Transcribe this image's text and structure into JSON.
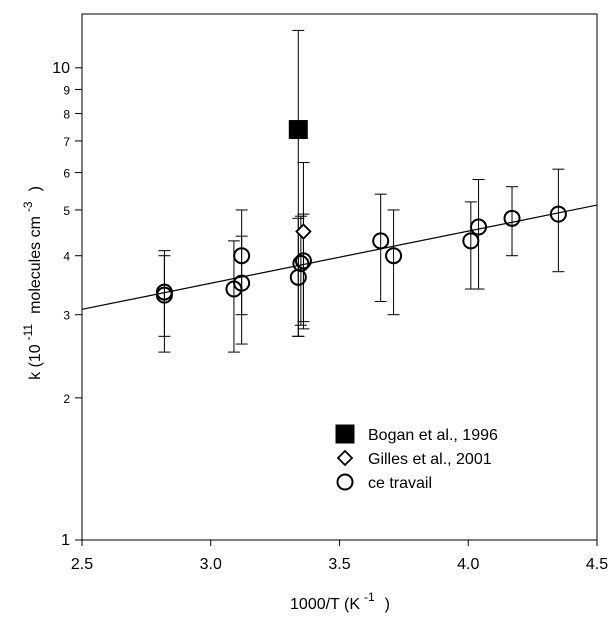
{
  "chart_data": {
    "type": "scatter",
    "xlabel": {
      "main": "1000/T (K",
      "sup": "-1",
      "close": ")"
    },
    "ylabel": {
      "pre": "k (10",
      "sup1": "-11",
      "mid": "molecules cm",
      "sup2": "-3",
      "close": ")"
    },
    "x_ticks": [
      "2.5",
      "3.0",
      "3.5",
      "4.0",
      "4.5"
    ],
    "xlim": [
      2.5,
      4.5
    ],
    "ylim": [
      1,
      13
    ],
    "y_scale": "log",
    "y_major_ticks": [
      "1",
      "2",
      "3",
      "4",
      "5",
      "6",
      "7",
      "8",
      "9",
      "10"
    ],
    "y_major_values": [
      1,
      2,
      3,
      4,
      5,
      6,
      7,
      8,
      9,
      10
    ],
    "legend": {
      "placement": "lower-right",
      "entries": [
        "Bogan et al., 1996",
        "Gilles et al., 2001",
        "ce travail"
      ]
    },
    "series": [
      {
        "name": "Bogan et al., 1996",
        "marker": "filled-square",
        "points": [
          {
            "x": 3.34,
            "y": 7.4,
            "ylow": 2.7,
            "yhigh": 12.0
          }
        ]
      },
      {
        "name": "Gilles et al., 2001",
        "marker": "open-diamond",
        "points": [
          {
            "x": 3.36,
            "y": 4.5,
            "ylow": 2.8,
            "yhigh": 6.3
          }
        ]
      },
      {
        "name": "ce travail",
        "marker": "open-circle",
        "points": [
          {
            "x": 2.82,
            "y": 3.35,
            "ylow": 2.7,
            "yhigh": 4.1
          },
          {
            "x": 2.82,
            "y": 3.3,
            "ylow": 2.5,
            "yhigh": 4.0
          },
          {
            "x": 3.09,
            "y": 3.4,
            "ylow": 2.5,
            "yhigh": 4.3
          },
          {
            "x": 3.12,
            "y": 3.5,
            "ylow": 2.6,
            "yhigh": 4.4
          },
          {
            "x": 3.12,
            "y": 4.0,
            "ylow": 3.0,
            "yhigh": 5.0
          },
          {
            "x": 3.34,
            "y": 3.6,
            "ylow": 2.7,
            "yhigh": 4.8
          },
          {
            "x": 3.35,
            "y": 3.85,
            "ylow": 2.85,
            "yhigh": 4.85
          },
          {
            "x": 3.36,
            "y": 3.9,
            "ylow": 2.9,
            "yhigh": 4.9
          },
          {
            "x": 3.66,
            "y": 4.3,
            "ylow": 3.2,
            "yhigh": 5.4
          },
          {
            "x": 3.71,
            "y": 4.0,
            "ylow": 3.0,
            "yhigh": 5.0
          },
          {
            "x": 4.01,
            "y": 4.3,
            "ylow": 3.4,
            "yhigh": 5.2
          },
          {
            "x": 4.04,
            "y": 4.6,
            "ylow": 3.4,
            "yhigh": 5.8
          },
          {
            "x": 4.17,
            "y": 4.8,
            "ylow": 4.0,
            "yhigh": 5.6
          },
          {
            "x": 4.35,
            "y": 4.9,
            "ylow": 3.7,
            "yhigh": 6.1
          }
        ]
      }
    ],
    "fit_line": {
      "x": [
        2.5,
        4.5
      ],
      "y": [
        3.08,
        5.12
      ]
    }
  }
}
